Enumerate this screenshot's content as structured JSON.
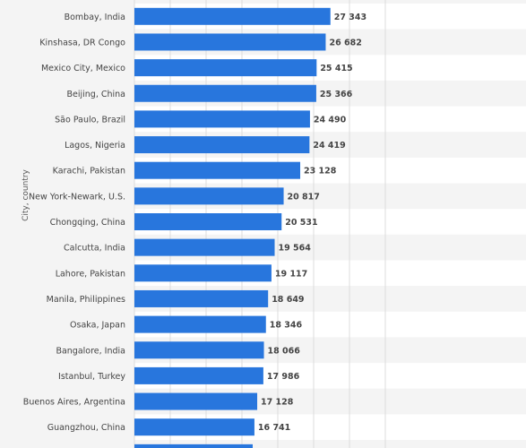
{
  "chart_data": {
    "type": "bar",
    "orientation": "horizontal",
    "ylabel": "City, country",
    "bar_color": "#2876dd",
    "background_color": "#f4f4f4",
    "xlim": [
      0,
      35000
    ],
    "grid": true,
    "categories": [
      "Bombay, India",
      "Kinshasa, DR Congo",
      "Mexico City, Mexico",
      "Beijing, China",
      "São Paulo, Brazil",
      "Lagos, Nigeria",
      "Karachi, Pakistan",
      "New York-Newark, U.S.",
      "Chongqing, China",
      "Calcutta, India",
      "Lahore, Pakistan",
      "Manila, Philippines",
      "Osaka, Japan",
      "Bangalore, India",
      "Istanbul, Turkey",
      "Buenos Aires, Argentina",
      "Guangzhou, China",
      ""
    ],
    "values": [
      27343,
      26682,
      25415,
      25366,
      24490,
      24419,
      23128,
      20817,
      20531,
      19564,
      19117,
      18649,
      18346,
      18066,
      17986,
      17128,
      16741,
      16500
    ],
    "value_labels": [
      "27 343",
      "26 682",
      "25 415",
      "25 366",
      "24 490",
      "24 419",
      "23 128",
      "20 817",
      "20 531",
      "19 564",
      "19 117",
      "18 649",
      "18 346",
      "18 066",
      "17 986",
      "17 128",
      "16 741",
      ""
    ]
  }
}
